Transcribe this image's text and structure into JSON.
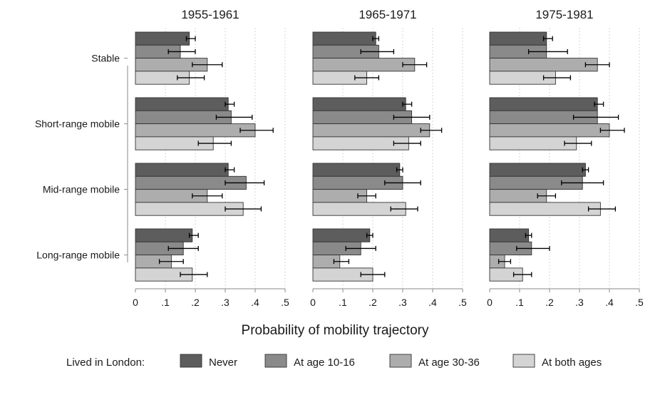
{
  "chart_data": {
    "type": "bar",
    "orientation": "horizontal",
    "xlabel": "Probability of mobility trajectory",
    "xlim": [
      0,
      0.5
    ],
    "x_ticks": [
      "0",
      ".1",
      ".2",
      ".3",
      ".4",
      ".5"
    ],
    "grid": true,
    "legend": {
      "title": "Lived in London:",
      "placement": "bottom",
      "items": [
        "Never",
        "At age 10-16",
        "At age 30-36",
        "At both ages"
      ]
    },
    "colors": [
      "#5d5d5d",
      "#8a8a8a",
      "#adadad",
      "#d4d4d4"
    ],
    "categories": [
      "Stable",
      "Short-range mobile",
      "Mid-range mobile",
      "Long-range mobile"
    ],
    "panels": [
      {
        "title": "1955-1961",
        "series": [
          {
            "name": "Never",
            "values": [
              0.18,
              0.31,
              0.31,
              0.19
            ],
            "ci_low": [
              0.17,
              0.3,
              0.3,
              0.18
            ],
            "ci_high": [
              0.2,
              0.33,
              0.33,
              0.21
            ]
          },
          {
            "name": "At age 10-16",
            "values": [
              0.15,
              0.32,
              0.37,
              0.16
            ],
            "ci_low": [
              0.11,
              0.27,
              0.3,
              0.11
            ],
            "ci_high": [
              0.2,
              0.39,
              0.43,
              0.21
            ]
          },
          {
            "name": "At age 30-36",
            "values": [
              0.24,
              0.4,
              0.24,
              0.12
            ],
            "ci_low": [
              0.19,
              0.35,
              0.19,
              0.08
            ],
            "ci_high": [
              0.29,
              0.46,
              0.29,
              0.16
            ]
          },
          {
            "name": "At both ages",
            "values": [
              0.18,
              0.26,
              0.36,
              0.19
            ],
            "ci_low": [
              0.14,
              0.21,
              0.3,
              0.15
            ],
            "ci_high": [
              0.23,
              0.32,
              0.42,
              0.24
            ]
          }
        ]
      },
      {
        "title": "1965-1971",
        "series": [
          {
            "name": "Never",
            "values": [
              0.21,
              0.31,
              0.29,
              0.19
            ],
            "ci_low": [
              0.2,
              0.3,
              0.28,
              0.18
            ],
            "ci_high": [
              0.22,
              0.33,
              0.3,
              0.2
            ]
          },
          {
            "name": "At age 10-16",
            "values": [
              0.22,
              0.33,
              0.3,
              0.16
            ],
            "ci_low": [
              0.16,
              0.27,
              0.24,
              0.11
            ],
            "ci_high": [
              0.27,
              0.39,
              0.36,
              0.21
            ]
          },
          {
            "name": "At age 30-36",
            "values": [
              0.34,
              0.39,
              0.18,
              0.09
            ],
            "ci_low": [
              0.3,
              0.36,
              0.15,
              0.07
            ],
            "ci_high": [
              0.38,
              0.43,
              0.21,
              0.12
            ]
          },
          {
            "name": "At both ages",
            "values": [
              0.18,
              0.32,
              0.31,
              0.2
            ],
            "ci_low": [
              0.14,
              0.27,
              0.26,
              0.16
            ],
            "ci_high": [
              0.22,
              0.36,
              0.35,
              0.24
            ]
          }
        ]
      },
      {
        "title": "1975-1981",
        "series": [
          {
            "name": "Never",
            "values": [
              0.19,
              0.36,
              0.32,
              0.13
            ],
            "ci_low": [
              0.18,
              0.35,
              0.31,
              0.12
            ],
            "ci_high": [
              0.21,
              0.38,
              0.33,
              0.14
            ]
          },
          {
            "name": "At age 10-16",
            "values": [
              0.19,
              0.36,
              0.31,
              0.14
            ],
            "ci_low": [
              0.13,
              0.28,
              0.24,
              0.09
            ],
            "ci_high": [
              0.26,
              0.43,
              0.38,
              0.2
            ]
          },
          {
            "name": "At age 30-36",
            "values": [
              0.36,
              0.4,
              0.19,
              0.05
            ],
            "ci_low": [
              0.32,
              0.37,
              0.16,
              0.03
            ],
            "ci_high": [
              0.4,
              0.45,
              0.22,
              0.07
            ]
          },
          {
            "name": "At both ages",
            "values": [
              0.22,
              0.29,
              0.37,
              0.11
            ],
            "ci_low": [
              0.18,
              0.25,
              0.33,
              0.08
            ],
            "ci_high": [
              0.27,
              0.34,
              0.42,
              0.14
            ]
          }
        ]
      }
    ]
  }
}
